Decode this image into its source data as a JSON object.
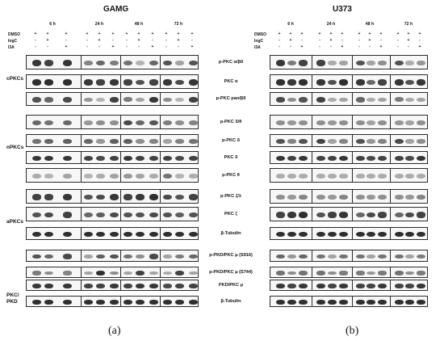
{
  "figure": {
    "panels": [
      {
        "id": "a",
        "title": "GAMG",
        "caption": "(a)",
        "timepoints": [
          "6 h",
          "24 h",
          "48 h",
          "72 h"
        ],
        "treatment_rows": [
          {
            "label": "DMSO",
            "symbols": [
              "+",
              "+",
              "+",
              "+",
              "+",
              "+",
              "+",
              "+",
              "+",
              "+",
              "+",
              "+"
            ]
          },
          {
            "label": "IngC",
            "symbols": [
              "-",
              "+",
              "-",
              "-",
              "+",
              "-",
              "-",
              "+",
              "-",
              "-",
              "+",
              "-"
            ]
          },
          {
            "label": "I3A",
            "symbols": [
              "-",
              "-",
              "+",
              "-",
              "-",
              "+",
              "-",
              "-",
              "+",
              "-",
              "-",
              "+"
            ]
          }
        ],
        "group_labels": [
          {
            "text": "cPKCs",
            "row": 1
          },
          {
            "text": "nPKCs",
            "row": 4.5
          },
          {
            "text": "aPKCs",
            "row": 8.5
          },
          {
            "text": "PKC/\nPKD",
            "row": 12.7
          }
        ]
      },
      {
        "id": "b",
        "title": "U373",
        "caption": "(b)",
        "timepoints": [
          "6 h",
          "24 h",
          "48 h",
          "72 h"
        ],
        "treatment_rows": [
          {
            "label": "DMSO",
            "symbols": [
              "+",
              "+",
              "+",
              "+",
              "+",
              "+",
              "+",
              "+",
              "+",
              "+",
              "+",
              "+"
            ]
          },
          {
            "label": "IngC",
            "symbols": [
              "-",
              "+",
              "-",
              "-",
              "+",
              "-",
              "-",
              "+",
              "-",
              "-",
              "+",
              "-"
            ]
          },
          {
            "label": "I3A",
            "symbols": [
              "-",
              "-",
              "+",
              "-",
              "-",
              "+",
              "-",
              "-",
              "+",
              "-",
              "-",
              "+"
            ]
          }
        ]
      }
    ],
    "markers": [
      "p-PKC α/βII",
      "PKC α",
      "p-PKC pan/βII",
      "p-PKC δ/θ",
      "p-PKC δ",
      "PKC δ",
      "p-PKC θ",
      "p-PKC ζ/λ",
      "PKC ζ",
      "β-Tubulin",
      "p-PKD/PKC μ  (S916)",
      "p-PKD/PKC μ  (S744)",
      "PKD/PKC μ",
      "β-Tubulin"
    ],
    "band_intensity_a": [
      [
        0.85,
        0.8,
        0.85,
        0.45,
        0.6,
        0.5,
        0.55,
        0.2,
        0.6,
        0.7,
        0.3,
        0.7
      ],
      [
        0.9,
        0.9,
        0.9,
        0.85,
        0.8,
        0.85,
        0.8,
        0.7,
        0.8,
        0.85,
        0.75,
        0.85
      ],
      [
        0.7,
        0.6,
        0.75,
        0.35,
        0.2,
        0.8,
        0.5,
        0.3,
        0.85,
        0.4,
        0.2,
        0.8
      ],
      [
        0.6,
        0.55,
        0.6,
        0.35,
        0.4,
        0.4,
        0.75,
        0.6,
        0.7,
        0.5,
        0.4,
        0.45
      ],
      [
        0.55,
        0.6,
        0.65,
        0.6,
        0.35,
        0.65,
        0.65,
        0.4,
        0.45,
        0.3,
        0.45,
        0.55
      ],
      [
        0.85,
        0.85,
        0.85,
        0.8,
        0.75,
        0.8,
        0.85,
        0.8,
        0.8,
        0.8,
        0.75,
        0.8
      ],
      [
        0.25,
        0.2,
        0.3,
        0.2,
        0.25,
        0.3,
        0.35,
        0.3,
        0.25,
        0.55,
        0.2,
        0.25
      ],
      [
        0.8,
        0.8,
        0.85,
        0.7,
        0.75,
        0.85,
        0.8,
        0.85,
        0.9,
        0.75,
        0.7,
        0.8
      ],
      [
        0.7,
        0.75,
        0.8,
        0.6,
        0.65,
        0.75,
        0.7,
        0.7,
        0.75,
        0.7,
        0.65,
        0.7
      ],
      [
        0.9,
        0.9,
        0.9,
        0.9,
        0.9,
        0.9,
        0.9,
        0.9,
        0.9,
        0.9,
        0.9,
        0.9
      ],
      [
        0.7,
        0.6,
        0.75,
        0.3,
        0.65,
        0.7,
        0.55,
        0.4,
        0.75,
        0.3,
        0.5,
        0.6
      ],
      [
        0.5,
        0.4,
        0.45,
        0.3,
        0.9,
        0.4,
        0.3,
        0.8,
        0.3,
        0.25,
        0.8,
        0.3
      ],
      [
        0.85,
        0.85,
        0.85,
        0.8,
        0.8,
        0.85,
        0.8,
        0.85,
        0.85,
        0.75,
        0.8,
        0.8
      ],
      [
        0.9,
        0.9,
        0.9,
        0.9,
        0.9,
        0.9,
        0.9,
        0.9,
        0.9,
        0.9,
        0.9,
        0.9
      ]
    ],
    "band_intensity_b": [
      [
        0.85,
        0.5,
        0.8,
        0.8,
        0.25,
        0.3,
        0.7,
        0.3,
        0.4,
        0.7,
        0.25,
        0.35
      ],
      [
        0.9,
        0.85,
        0.9,
        0.85,
        0.7,
        0.9,
        0.85,
        0.6,
        0.8,
        0.85,
        0.7,
        0.85
      ],
      [
        0.75,
        0.4,
        0.7,
        0.8,
        0.25,
        0.3,
        0.6,
        0.25,
        0.3,
        0.5,
        0.25,
        0.3
      ],
      [
        0.4,
        0.35,
        0.4,
        0.4,
        0.35,
        0.4,
        0.4,
        0.3,
        0.4,
        0.35,
        0.3,
        0.4
      ],
      [
        0.7,
        0.45,
        0.7,
        0.8,
        0.3,
        0.45,
        0.7,
        0.35,
        0.45,
        0.75,
        0.3,
        0.4
      ],
      [
        0.85,
        0.8,
        0.85,
        0.8,
        0.8,
        0.85,
        0.8,
        0.75,
        0.8,
        0.8,
        0.75,
        0.85
      ],
      [
        0.25,
        0.25,
        0.25,
        0.25,
        0.25,
        0.25,
        0.25,
        0.25,
        0.25,
        0.25,
        0.25,
        0.25
      ],
      [
        0.4,
        0.35,
        0.45,
        0.4,
        0.35,
        0.45,
        0.4,
        0.35,
        0.4,
        0.4,
        0.35,
        0.45
      ],
      [
        0.8,
        0.85,
        0.9,
        0.7,
        0.8,
        0.85,
        0.6,
        0.75,
        0.8,
        0.6,
        0.75,
        0.8
      ],
      [
        0.9,
        0.9,
        0.9,
        0.9,
        0.9,
        0.9,
        0.9,
        0.9,
        0.9,
        0.9,
        0.9,
        0.9
      ],
      [
        0.6,
        0.35,
        0.6,
        0.55,
        0.3,
        0.55,
        0.55,
        0.3,
        0.55,
        0.55,
        0.3,
        0.5
      ],
      [
        0.55,
        0.4,
        0.55,
        0.55,
        0.4,
        0.5,
        0.5,
        0.35,
        0.5,
        0.55,
        0.4,
        0.5
      ],
      [
        0.85,
        0.8,
        0.85,
        0.85,
        0.8,
        0.85,
        0.8,
        0.8,
        0.85,
        0.8,
        0.8,
        0.85
      ],
      [
        0.9,
        0.9,
        0.9,
        0.9,
        0.9,
        0.9,
        0.9,
        0.9,
        0.9,
        0.9,
        0.9,
        0.9
      ]
    ],
    "colors": {
      "band": "#1a1a1a",
      "panel_bg": "#f7f7f7",
      "frame": "#2a2a2a"
    }
  }
}
